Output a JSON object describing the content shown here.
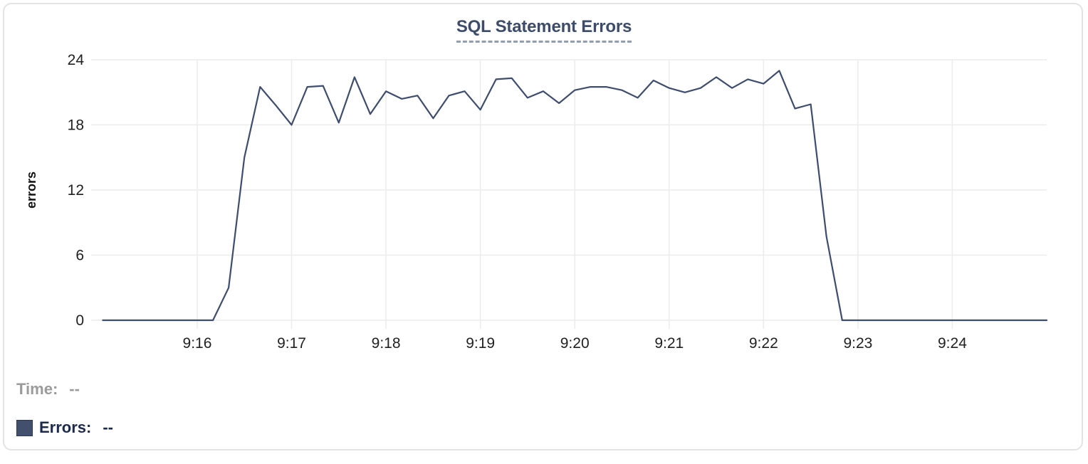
{
  "chart": {
    "title": "SQL Statement Errors",
    "colors": {
      "line": "#3e4d6d",
      "swatch": "#42506e",
      "title": "#3d4c6a",
      "grid": "#ececec",
      "tick_label": "#212121",
      "axis_title": "#111111",
      "time_text": "#9b9b9b",
      "errors_text": "#1c2a4e",
      "title_underline": "#929db4",
      "card_border": "#e3e3e3"
    }
  },
  "readout": {
    "time_label": "Time:",
    "time_value": "--",
    "errors_label": "Errors:",
    "errors_value": "--"
  },
  "chart_data": {
    "type": "line",
    "title": "SQL Statement Errors",
    "xlabel": "",
    "ylabel": "errors",
    "ylim": [
      0,
      24
    ],
    "yticks": [
      0,
      6,
      12,
      18,
      24
    ],
    "xticks": [
      "9:16",
      "9:17",
      "9:18",
      "9:19",
      "9:20",
      "9:21",
      "9:22",
      "9:23",
      "9:24"
    ],
    "x_start": "9:15:00",
    "x_end": "9:25:00",
    "sample_interval_seconds": 10,
    "grid": true,
    "legend_position": "bottom-left",
    "series": [
      {
        "name": "Errors",
        "points": [
          [
            "9:15:00",
            0
          ],
          [
            "9:15:10",
            0
          ],
          [
            "9:15:20",
            0
          ],
          [
            "9:15:30",
            0
          ],
          [
            "9:15:40",
            0
          ],
          [
            "9:15:50",
            0
          ],
          [
            "9:16:00",
            0
          ],
          [
            "9:16:10",
            0
          ],
          [
            "9:16:20",
            3
          ],
          [
            "9:16:30",
            15
          ],
          [
            "9:16:40",
            21.5
          ],
          [
            "9:16:50",
            19.8
          ],
          [
            "9:17:00",
            18
          ],
          [
            "9:17:10",
            21.5
          ],
          [
            "9:17:20",
            21.6
          ],
          [
            "9:17:30",
            18.2
          ],
          [
            "9:17:40",
            22.4
          ],
          [
            "9:17:50",
            19
          ],
          [
            "9:18:00",
            21.1
          ],
          [
            "9:18:10",
            20.4
          ],
          [
            "9:18:20",
            20.7
          ],
          [
            "9:18:30",
            18.6
          ],
          [
            "9:18:40",
            20.7
          ],
          [
            "9:18:50",
            21.1
          ],
          [
            "9:19:00",
            19.4
          ],
          [
            "9:19:10",
            22.2
          ],
          [
            "9:19:20",
            22.3
          ],
          [
            "9:19:30",
            20.5
          ],
          [
            "9:19:40",
            21.1
          ],
          [
            "9:19:50",
            20
          ],
          [
            "9:20:00",
            21.2
          ],
          [
            "9:20:10",
            21.5
          ],
          [
            "9:20:20",
            21.5
          ],
          [
            "9:20:30",
            21.2
          ],
          [
            "9:20:40",
            20.5
          ],
          [
            "9:20:50",
            22.1
          ],
          [
            "9:21:00",
            21.4
          ],
          [
            "9:21:10",
            21
          ],
          [
            "9:21:20",
            21.4
          ],
          [
            "9:21:30",
            22.4
          ],
          [
            "9:21:40",
            21.4
          ],
          [
            "9:21:50",
            22.2
          ],
          [
            "9:22:00",
            21.8
          ],
          [
            "9:22:10",
            23
          ],
          [
            "9:22:20",
            19.5
          ],
          [
            "9:22:30",
            19.9
          ],
          [
            "9:22:40",
            7.7
          ],
          [
            "9:22:50",
            0
          ],
          [
            "9:23:00",
            0
          ],
          [
            "9:23:10",
            0
          ],
          [
            "9:23:20",
            0
          ],
          [
            "9:23:30",
            0
          ],
          [
            "9:23:40",
            0
          ],
          [
            "9:23:50",
            0
          ],
          [
            "9:24:00",
            0
          ],
          [
            "9:24:10",
            0
          ],
          [
            "9:24:20",
            0
          ],
          [
            "9:24:30",
            0
          ],
          [
            "9:24:40",
            0
          ],
          [
            "9:24:50",
            0
          ],
          [
            "9:25:00",
            0
          ]
        ]
      }
    ]
  }
}
